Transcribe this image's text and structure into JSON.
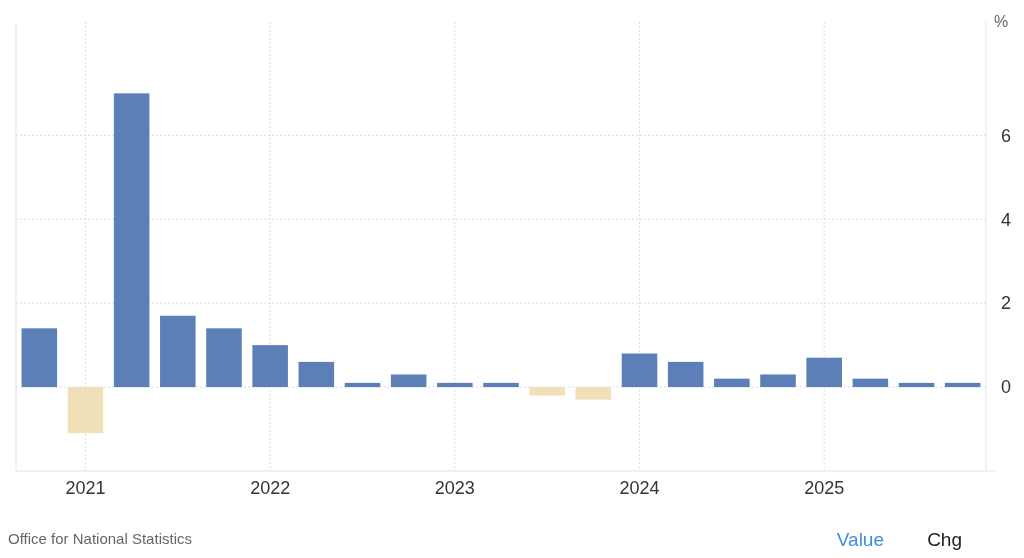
{
  "chart_data": {
    "type": "bar",
    "ylabel": "%",
    "categories": [
      null,
      "2021",
      null,
      null,
      null,
      "2022",
      null,
      null,
      null,
      "2023",
      null,
      null,
      null,
      "2024",
      null,
      null,
      null,
      "2025",
      null,
      null,
      null
    ],
    "values": [
      1.4,
      -1.1,
      7.0,
      1.7,
      1.4,
      1.0,
      0.6,
      0.1,
      0.3,
      0.1,
      0.1,
      -0.2,
      -0.3,
      0.8,
      0.6,
      0.2,
      0.3,
      0.7,
      0.2,
      0.1,
      0.1
    ],
    "colors": [
      "#5b7fb6",
      "#f1dfb7",
      "#5b7fb6",
      "#5b7fb6",
      "#5b7fb6",
      "#5b7fb6",
      "#5b7fb6",
      "#5b7fb6",
      "#5b7fb6",
      "#5b7fb6",
      "#5b7fb6",
      "#f1dfb7",
      "#f1dfb7",
      "#5b7fb6",
      "#5b7fb6",
      "#5b7fb6",
      "#5b7fb6",
      "#5b7fb6",
      "#5b7fb6",
      "#5b7fb6",
      "#5b7fb6"
    ],
    "ylim": [
      -2,
      8.7
    ],
    "yticks": [
      0,
      2,
      4,
      6
    ],
    "grid": true,
    "annotations": [
      "Office for National Statistics",
      "Value",
      "Chg"
    ]
  }
}
